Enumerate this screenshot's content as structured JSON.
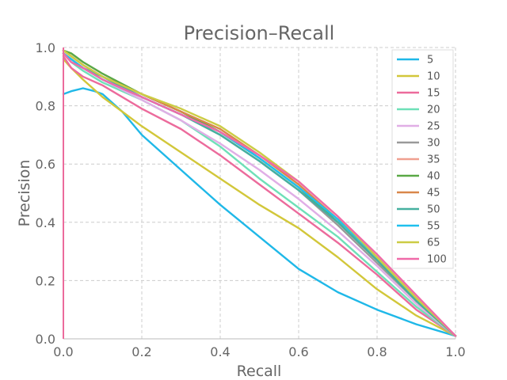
{
  "chart_data": {
    "type": "line",
    "title": "Precision–Recall",
    "xlabel": "Recall",
    "ylabel": "Precision",
    "xlim": [
      0,
      1
    ],
    "ylim": [
      0,
      1
    ],
    "xticks": [
      "0.0",
      "0.2",
      "0.4",
      "0.6",
      "0.8",
      "1.0"
    ],
    "yticks": [
      "0.0",
      "0.2",
      "0.4",
      "0.6",
      "0.8",
      "1.0"
    ],
    "grid": true,
    "legend": "top-right",
    "series": [
      {
        "name": "5",
        "color": "#1fb8e8",
        "x": [
          0,
          0.02,
          0.05,
          0.08,
          0.1,
          0.15,
          0.2,
          0.3,
          0.4,
          0.5,
          0.6,
          0.7,
          0.8,
          0.9,
          1.0
        ],
        "y": [
          0.84,
          0.85,
          0.86,
          0.85,
          0.84,
          0.78,
          0.7,
          0.58,
          0.46,
          0.35,
          0.24,
          0.16,
          0.1,
          0.05,
          0.01
        ]
      },
      {
        "name": "10",
        "color": "#d2c73a",
        "x": [
          0,
          0.02,
          0.05,
          0.1,
          0.15,
          0.2,
          0.3,
          0.4,
          0.5,
          0.6,
          0.7,
          0.8,
          0.9,
          1.0
        ],
        "y": [
          0.96,
          0.93,
          0.89,
          0.83,
          0.78,
          0.73,
          0.64,
          0.55,
          0.46,
          0.38,
          0.28,
          0.17,
          0.08,
          0.01
        ]
      },
      {
        "name": "15",
        "color": "#ec6b9c",
        "x": [
          0,
          0.02,
          0.05,
          0.1,
          0.2,
          0.3,
          0.4,
          0.5,
          0.6,
          0.7,
          0.8,
          0.9,
          1.0
        ],
        "y": [
          0.97,
          0.93,
          0.9,
          0.87,
          0.79,
          0.72,
          0.63,
          0.53,
          0.43,
          0.33,
          0.22,
          0.1,
          0.01
        ]
      },
      {
        "name": "20",
        "color": "#6ee0b8",
        "x": [
          0,
          0.02,
          0.05,
          0.1,
          0.2,
          0.3,
          0.4,
          0.5,
          0.6,
          0.7,
          0.8,
          0.9,
          1.0
        ],
        "y": [
          0.98,
          0.95,
          0.92,
          0.88,
          0.82,
          0.75,
          0.66,
          0.55,
          0.45,
          0.35,
          0.23,
          0.11,
          0.01
        ]
      },
      {
        "name": "25",
        "color": "#e0aee6",
        "x": [
          0,
          0.02,
          0.05,
          0.1,
          0.2,
          0.3,
          0.4,
          0.5,
          0.6,
          0.7,
          0.8,
          0.9,
          1.0
        ],
        "y": [
          0.98,
          0.96,
          0.93,
          0.89,
          0.82,
          0.75,
          0.67,
          0.58,
          0.48,
          0.37,
          0.25,
          0.12,
          0.01
        ]
      },
      {
        "name": "30",
        "color": "#999999",
        "x": [
          0,
          0.02,
          0.05,
          0.1,
          0.2,
          0.3,
          0.4,
          0.5,
          0.6,
          0.7,
          0.8,
          0.9,
          1.0
        ],
        "y": [
          0.99,
          0.97,
          0.94,
          0.9,
          0.83,
          0.77,
          0.7,
          0.61,
          0.51,
          0.39,
          0.26,
          0.13,
          0.01
        ]
      },
      {
        "name": "35",
        "color": "#f0a090",
        "x": [
          0,
          0.02,
          0.05,
          0.1,
          0.2,
          0.3,
          0.4,
          0.5,
          0.6,
          0.7,
          0.8,
          0.9,
          1.0
        ],
        "y": [
          0.99,
          0.97,
          0.94,
          0.9,
          0.84,
          0.78,
          0.71,
          0.62,
          0.52,
          0.4,
          0.27,
          0.13,
          0.01
        ]
      },
      {
        "name": "40",
        "color": "#5aa845",
        "x": [
          0,
          0.02,
          0.05,
          0.1,
          0.2,
          0.3,
          0.4,
          0.5,
          0.6,
          0.7,
          0.8,
          0.9,
          1.0
        ],
        "y": [
          0.99,
          0.98,
          0.95,
          0.91,
          0.84,
          0.78,
          0.71,
          0.62,
          0.52,
          0.4,
          0.27,
          0.13,
          0.01
        ]
      },
      {
        "name": "45",
        "color": "#d9874a",
        "x": [
          0,
          0.02,
          0.05,
          0.1,
          0.2,
          0.3,
          0.4,
          0.5,
          0.6,
          0.7,
          0.8,
          0.9,
          1.0
        ],
        "y": [
          0.99,
          0.97,
          0.94,
          0.9,
          0.84,
          0.78,
          0.72,
          0.63,
          0.53,
          0.41,
          0.28,
          0.14,
          0.01
        ]
      },
      {
        "name": "50",
        "color": "#45b0a0",
        "x": [
          0,
          0.02,
          0.05,
          0.1,
          0.2,
          0.3,
          0.4,
          0.5,
          0.6,
          0.7,
          0.8,
          0.9,
          1.0
        ],
        "y": [
          0.98,
          0.96,
          0.93,
          0.9,
          0.83,
          0.77,
          0.7,
          0.61,
          0.51,
          0.4,
          0.27,
          0.13,
          0.01
        ]
      },
      {
        "name": "55",
        "color": "#1fc0ee",
        "x": [
          0,
          0.02,
          0.05,
          0.1,
          0.2,
          0.3,
          0.4,
          0.5,
          0.6,
          0.7,
          0.8,
          0.9,
          1.0
        ],
        "y": [
          0.98,
          0.96,
          0.93,
          0.89,
          0.83,
          0.77,
          0.71,
          0.62,
          0.52,
          0.41,
          0.28,
          0.14,
          0.01
        ]
      },
      {
        "name": "65",
        "color": "#cccc44",
        "x": [
          0,
          0.02,
          0.05,
          0.1,
          0.2,
          0.3,
          0.4,
          0.5,
          0.6,
          0.7,
          0.8,
          0.9,
          1.0
        ],
        "y": [
          0.99,
          0.97,
          0.94,
          0.9,
          0.84,
          0.79,
          0.73,
          0.64,
          0.54,
          0.42,
          0.28,
          0.14,
          0.01
        ]
      },
      {
        "name": "100",
        "color": "#f06aa8",
        "x": [
          0,
          0.02,
          0.05,
          0.1,
          0.2,
          0.3,
          0.4,
          0.5,
          0.6,
          0.7,
          0.8,
          0.9,
          1.0
        ],
        "y": [
          0.98,
          0.95,
          0.93,
          0.89,
          0.83,
          0.77,
          0.71,
          0.63,
          0.54,
          0.42,
          0.29,
          0.15,
          0.01
        ]
      }
    ]
  }
}
